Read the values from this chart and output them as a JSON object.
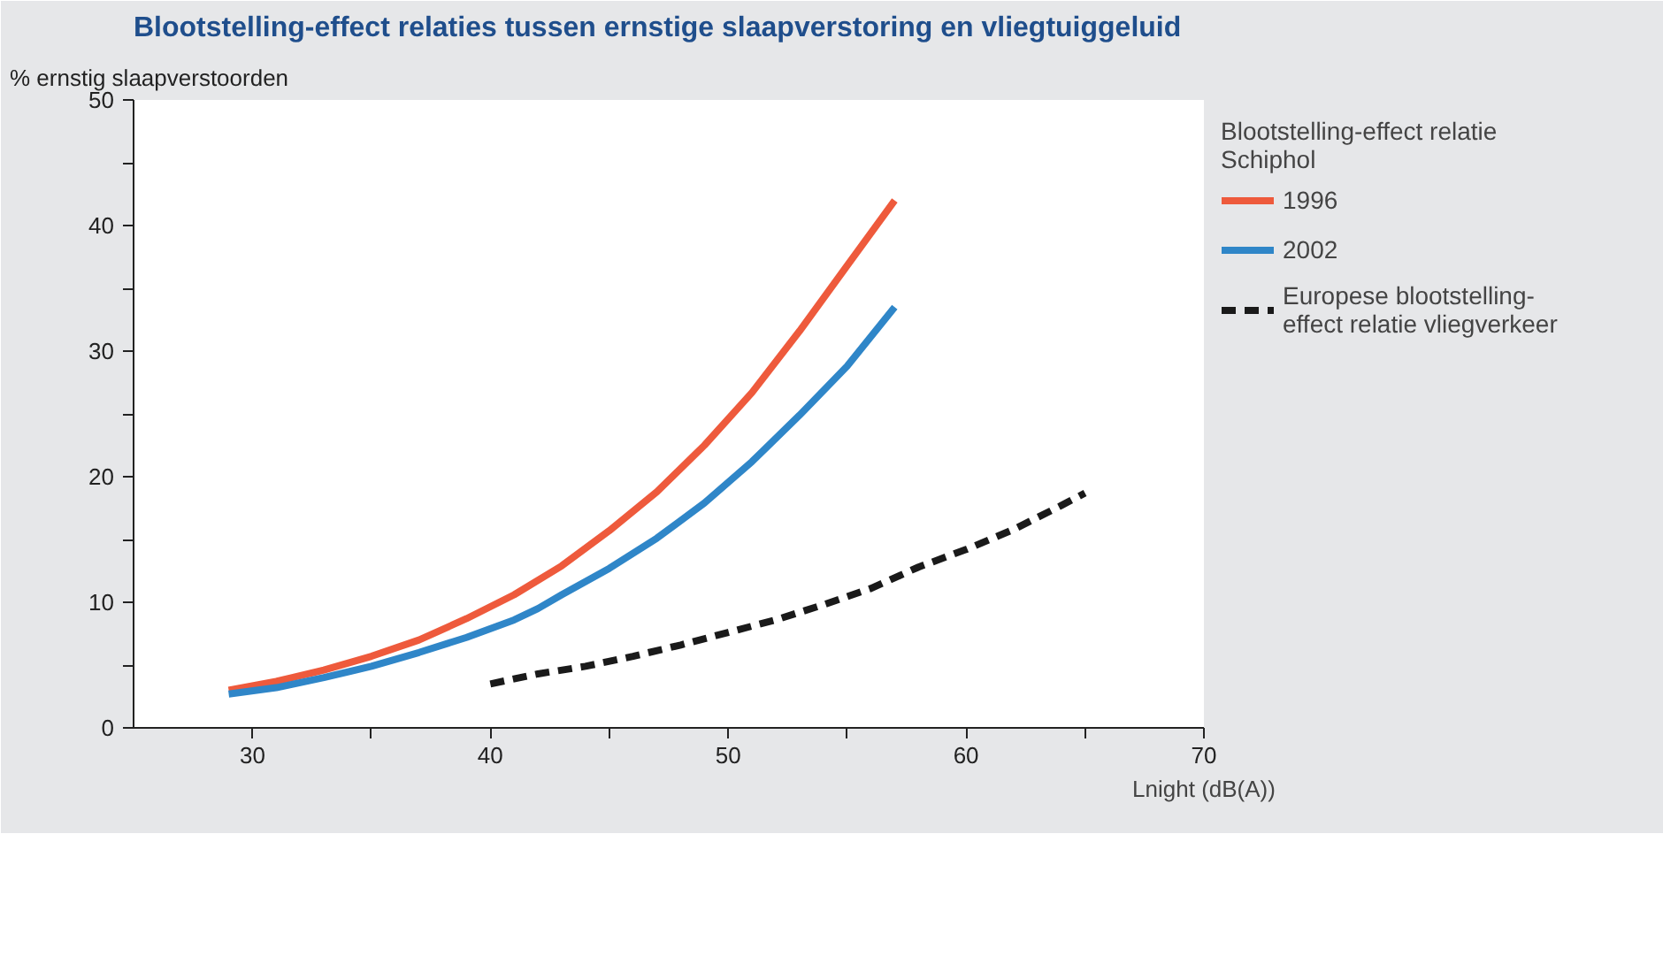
{
  "chart_data": {
    "type": "line",
    "title": "Blootstelling-effect relaties tussen ernstige slaapverstoring en vliegtuiggeluid",
    "ylabel": "% ernstig slaapverstoorden",
    "xlabel": "Lnight (dB(A))",
    "legend_title": "Blootstelling-effect relatie Schiphol",
    "legend": "right",
    "grid": false,
    "marker": "none",
    "xlim": [
      25,
      70
    ],
    "xticks": [
      30,
      {
        "value": 35,
        "label": null
      },
      40,
      {
        "value": 45,
        "label": null
      },
      50,
      {
        "value": 55,
        "label": null
      },
      60,
      {
        "value": 65,
        "label": null
      },
      70
    ],
    "ylim": [
      0,
      50
    ],
    "yticks": [
      0,
      {
        "value": 5,
        "label": null
      },
      10,
      {
        "value": 15,
        "label": null
      },
      20,
      {
        "value": 25,
        "label": null
      },
      30,
      {
        "value": 35,
        "label": null
      },
      40,
      {
        "value": 45,
        "label": null
      },
      50
    ],
    "series": [
      {
        "name": "1996",
        "color": "#ee5a3c",
        "line_style": "solid",
        "x": [
          29,
          31,
          33,
          35,
          37,
          39,
          41,
          43,
          45,
          47,
          49,
          51,
          53,
          55,
          57
        ],
        "values": [
          3.0,
          3.7,
          4.6,
          5.7,
          7.0,
          8.7,
          10.6,
          12.9,
          15.7,
          18.8,
          22.5,
          26.7,
          31.6,
          36.8,
          42.0
        ]
      },
      {
        "name": "2002",
        "color": "#2f86c8",
        "line_style": "solid",
        "x": [
          29,
          31,
          33,
          35,
          37,
          39,
          41,
          42,
          43,
          45,
          47,
          49,
          51,
          53,
          55,
          57
        ],
        "values": [
          2.7,
          3.2,
          4.0,
          4.9,
          6.0,
          7.2,
          8.6,
          9.5,
          10.6,
          12.7,
          15.1,
          17.9,
          21.2,
          24.9,
          28.8,
          33.5
        ]
      },
      {
        "name": "Europese blootstelling-effect relatie vliegverkeer",
        "color": "#1a1a1a",
        "line_style": "dashed",
        "x": [
          40,
          42,
          44,
          46,
          48,
          50,
          52,
          54,
          56,
          58,
          60,
          62,
          64,
          65
        ],
        "values": [
          3.5,
          4.3,
          4.9,
          5.7,
          6.6,
          7.6,
          8.6,
          9.8,
          11.1,
          12.8,
          14.2,
          15.8,
          17.7,
          18.7
        ]
      }
    ]
  }
}
